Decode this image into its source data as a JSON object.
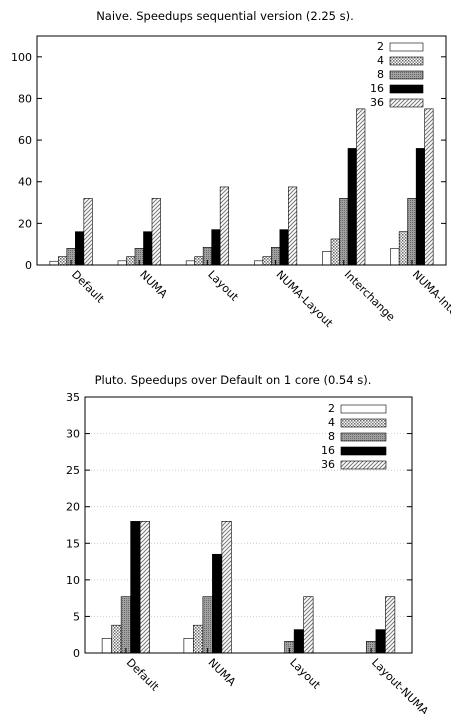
{
  "chart_data": [
    {
      "type": "bar",
      "title": "Naive. Speedups sequential version (2.25 s).",
      "categories": [
        "Default",
        "NUMA",
        "Layout",
        "NUMA-Layout",
        "Interchange",
        "NUMA-Interchange"
      ],
      "series": [
        {
          "name": "2",
          "values": [
            1.8,
            2.0,
            2.0,
            2.0,
            6.5,
            8.0
          ]
        },
        {
          "name": "4",
          "values": [
            4.0,
            4.0,
            4.0,
            4.0,
            12.5,
            16.0
          ]
        },
        {
          "name": "8",
          "values": [
            8.0,
            8.0,
            8.5,
            8.5,
            32.0,
            32.0
          ]
        },
        {
          "name": "16",
          "values": [
            16.0,
            16.0,
            17.0,
            17.0,
            56.0,
            56.0
          ]
        },
        {
          "name": "36",
          "values": [
            32.0,
            32.0,
            37.5,
            37.5,
            75.0,
            75.0
          ]
        }
      ],
      "ylim": [
        0,
        110
      ],
      "yticks": [
        0,
        20,
        40,
        60,
        80,
        100
      ],
      "grid": false,
      "legend": "top-right"
    },
    {
      "type": "bar",
      "title": "Pluto. Speedups over Default on 1 core (0.54 s).",
      "categories": [
        "Default",
        "NUMA",
        "Layout",
        "Layout-NUMA"
      ],
      "series": [
        {
          "name": "2",
          "values": [
            2.0,
            2.0,
            0,
            0
          ]
        },
        {
          "name": "4",
          "values": [
            3.8,
            3.8,
            0,
            0
          ]
        },
        {
          "name": "8",
          "values": [
            7.7,
            7.7,
            1.6,
            1.6
          ]
        },
        {
          "name": "16",
          "values": [
            18.0,
            13.5,
            3.2,
            3.2
          ]
        },
        {
          "name": "36",
          "values": [
            18.0,
            18.0,
            7.7,
            7.7
          ]
        }
      ],
      "ylim": [
        0,
        35
      ],
      "yticks": [
        0,
        5,
        10,
        15,
        20,
        25,
        30,
        35
      ],
      "grid": true,
      "legend": "top-right"
    }
  ]
}
